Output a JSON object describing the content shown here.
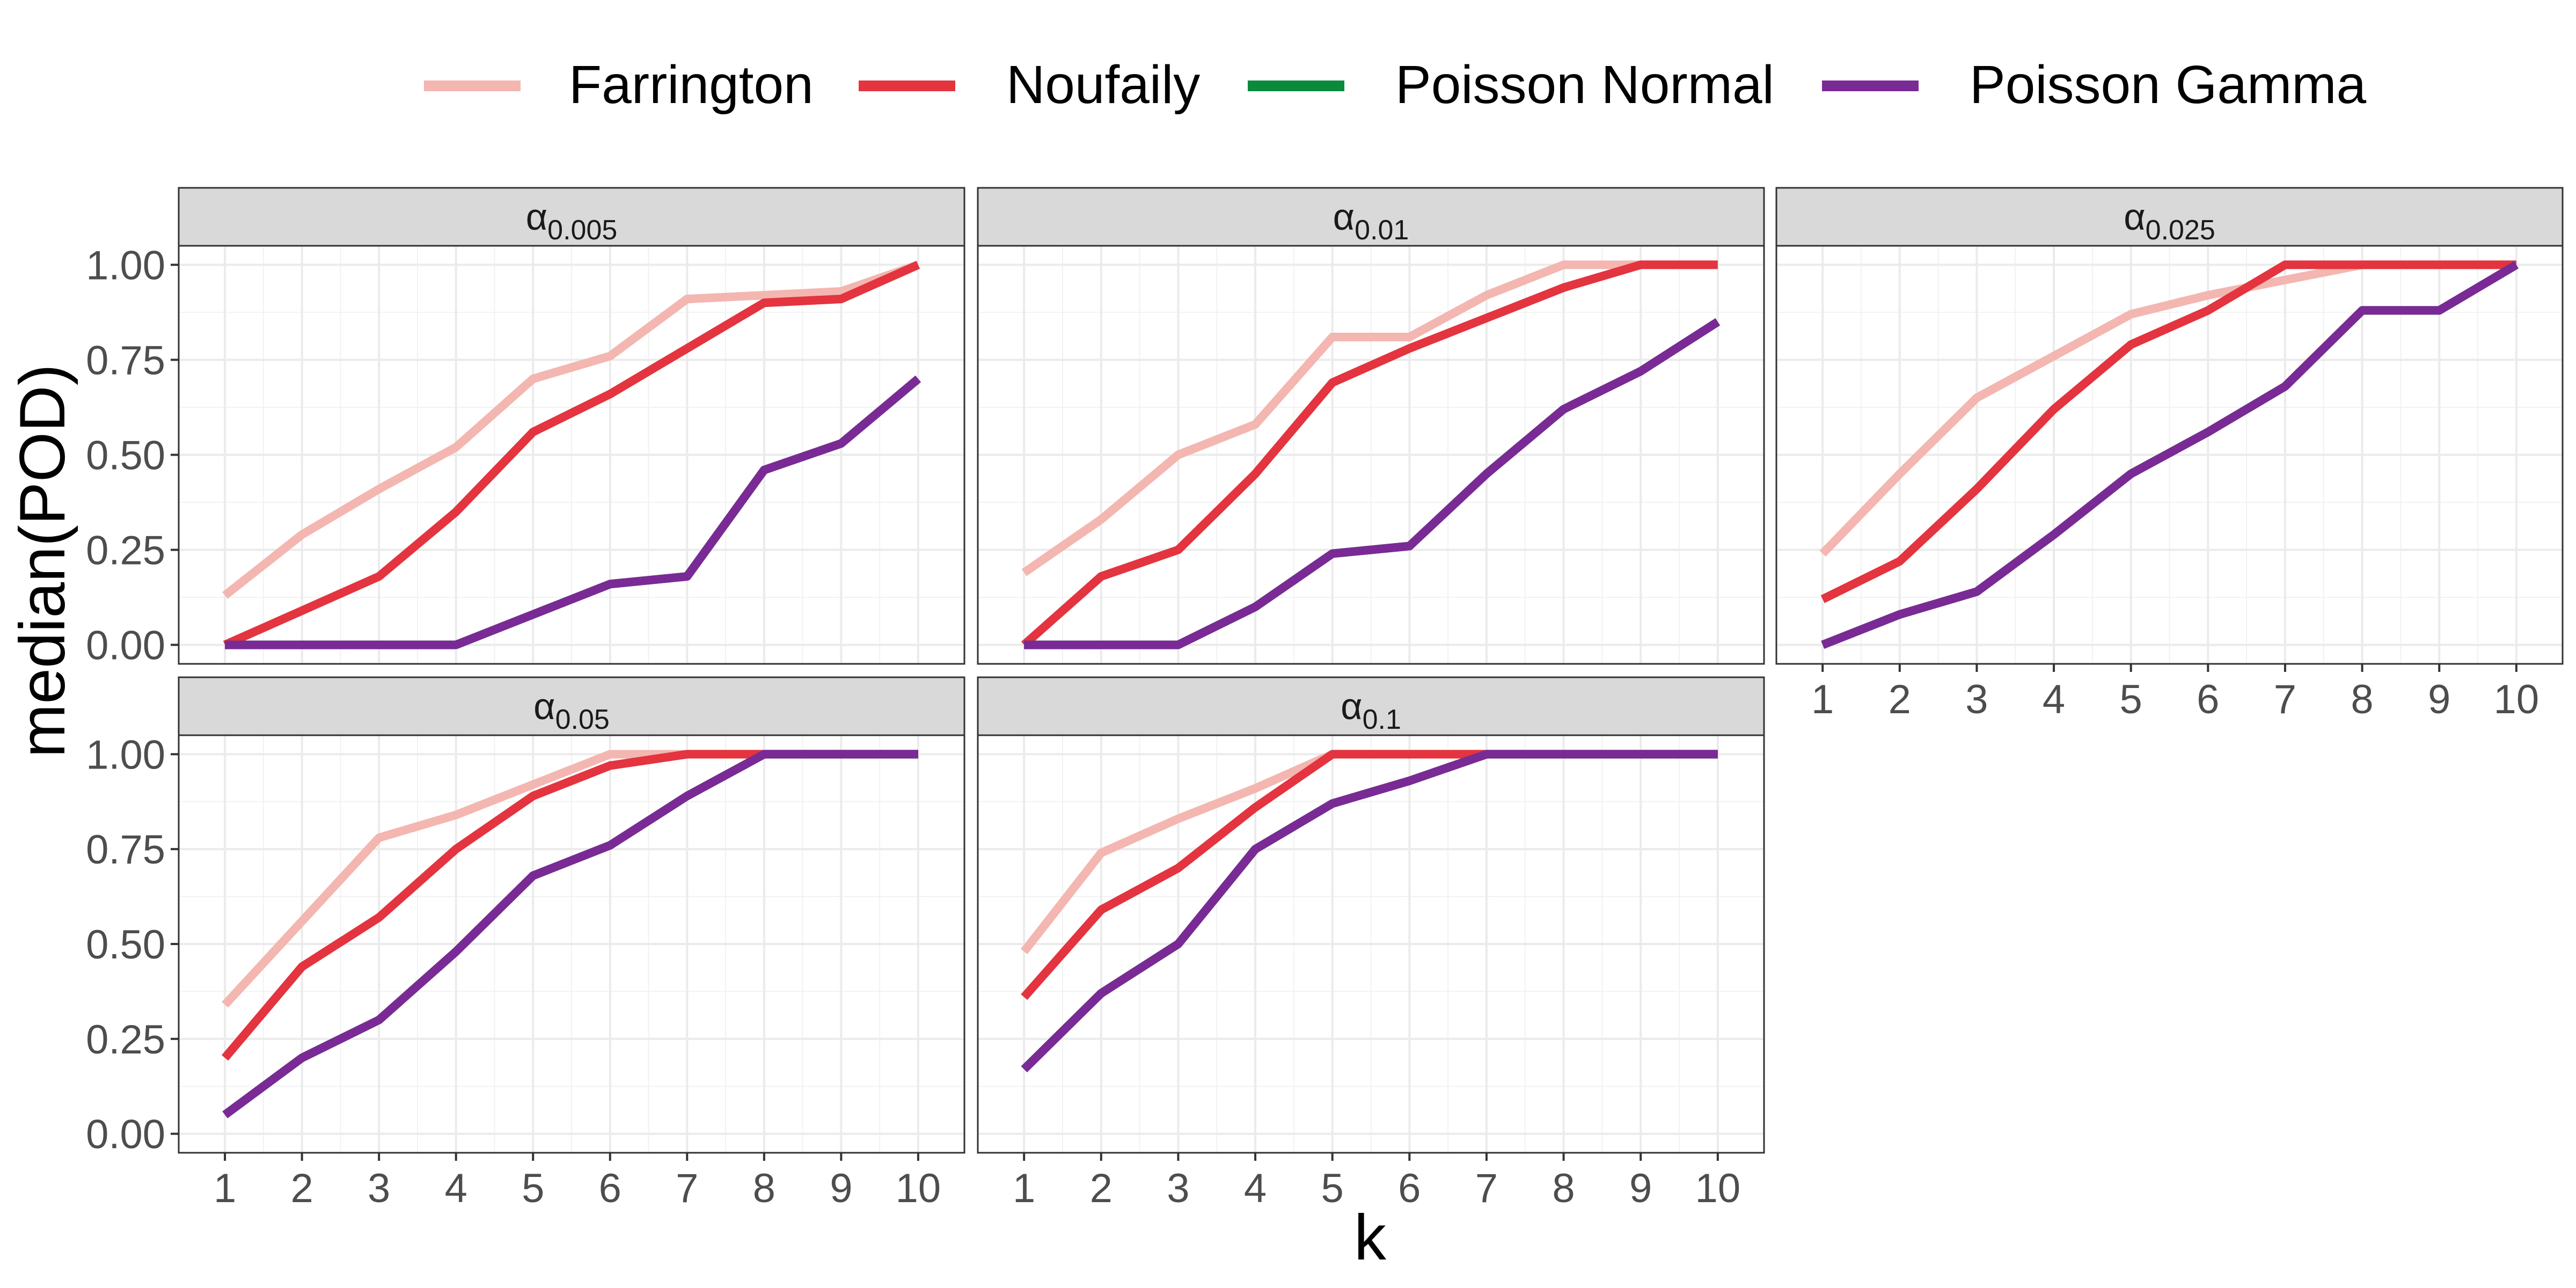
{
  "legend": {
    "entries": [
      {
        "label": "Farrington",
        "color": "#F4B6B0"
      },
      {
        "label": "Noufaily",
        "color": "#E3343F"
      },
      {
        "label": "Poisson Normal",
        "color": "#0A8A3C"
      },
      {
        "label": "Poisson Gamma",
        "color": "#7A2A95"
      }
    ]
  },
  "axes": {
    "xlabel": "k",
    "ylabel": "median(POD)",
    "x_ticks": [
      "1",
      "2",
      "3",
      "4",
      "5",
      "6",
      "7",
      "8",
      "9",
      "10"
    ],
    "y_ticks": [
      "0.00",
      "0.25",
      "0.50",
      "0.75",
      "1.00"
    ]
  },
  "chart_data": [
    {
      "type": "line",
      "panel_title_symbol": "α",
      "panel_title_subscript": "0.005",
      "x": [
        1,
        2,
        3,
        4,
        5,
        6,
        7,
        8,
        9,
        10
      ],
      "ylim": [
        -0.05,
        1.05
      ],
      "series": [
        {
          "name": "Farrington",
          "values": [
            0.13,
            0.29,
            0.41,
            0.52,
            0.7,
            0.76,
            0.91,
            0.92,
            0.93,
            1.0
          ]
        },
        {
          "name": "Noufaily",
          "values": [
            0.0,
            0.09,
            0.18,
            0.35,
            0.56,
            0.66,
            0.78,
            0.9,
            0.91,
            1.0
          ]
        },
        {
          "name": "Poisson Normal",
          "values": [
            0.0,
            0.0,
            0.0,
            0.0,
            0.08,
            0.16,
            0.18,
            0.46,
            0.53,
            0.7
          ]
        },
        {
          "name": "Poisson Gamma",
          "values": [
            0.0,
            0.0,
            0.0,
            0.0,
            0.08,
            0.16,
            0.18,
            0.46,
            0.53,
            0.7
          ]
        }
      ]
    },
    {
      "type": "line",
      "panel_title_symbol": "α",
      "panel_title_subscript": "0.01",
      "x": [
        1,
        2,
        3,
        4,
        5,
        6,
        7,
        8,
        9,
        10
      ],
      "ylim": [
        -0.05,
        1.05
      ],
      "series": [
        {
          "name": "Farrington",
          "values": [
            0.19,
            0.33,
            0.5,
            0.58,
            0.81,
            0.81,
            0.92,
            1.0,
            1.0,
            1.0
          ]
        },
        {
          "name": "Noufaily",
          "values": [
            0.0,
            0.18,
            0.25,
            0.45,
            0.69,
            0.78,
            0.86,
            0.94,
            1.0,
            1.0
          ]
        },
        {
          "name": "Poisson Normal",
          "values": [
            0.0,
            0.0,
            0.0,
            0.1,
            0.24,
            0.26,
            0.45,
            0.62,
            0.72,
            0.85
          ]
        },
        {
          "name": "Poisson Gamma",
          "values": [
            0.0,
            0.0,
            0.0,
            0.1,
            0.24,
            0.26,
            0.45,
            0.62,
            0.72,
            0.85
          ]
        }
      ]
    },
    {
      "type": "line",
      "panel_title_symbol": "α",
      "panel_title_subscript": "0.025",
      "x": [
        1,
        2,
        3,
        4,
        5,
        6,
        7,
        8,
        9,
        10
      ],
      "ylim": [
        -0.05,
        1.05
      ],
      "series": [
        {
          "name": "Farrington",
          "values": [
            0.24,
            0.45,
            0.65,
            0.76,
            0.87,
            0.92,
            0.96,
            1.0,
            1.0,
            1.0
          ]
        },
        {
          "name": "Noufaily",
          "values": [
            0.12,
            0.22,
            0.41,
            0.62,
            0.79,
            0.88,
            1.0,
            1.0,
            1.0,
            1.0
          ]
        },
        {
          "name": "Poisson Normal",
          "values": [
            0.0,
            0.08,
            0.14,
            0.29,
            0.45,
            0.56,
            0.68,
            0.88,
            0.88,
            1.0
          ]
        },
        {
          "name": "Poisson Gamma",
          "values": [
            0.0,
            0.08,
            0.14,
            0.29,
            0.45,
            0.56,
            0.68,
            0.88,
            0.88,
            1.0
          ]
        }
      ]
    },
    {
      "type": "line",
      "panel_title_symbol": "α",
      "panel_title_subscript": "0.05",
      "x": [
        1,
        2,
        3,
        4,
        5,
        6,
        7,
        8,
        9,
        10
      ],
      "ylim": [
        -0.05,
        1.05
      ],
      "series": [
        {
          "name": "Farrington",
          "values": [
            0.34,
            0.56,
            0.78,
            0.84,
            0.92,
            1.0,
            1.0,
            1.0,
            1.0,
            1.0
          ]
        },
        {
          "name": "Noufaily",
          "values": [
            0.2,
            0.44,
            0.57,
            0.75,
            0.89,
            0.97,
            1.0,
            1.0,
            1.0,
            1.0
          ]
        },
        {
          "name": "Poisson Normal",
          "values": [
            0.05,
            0.2,
            0.3,
            0.48,
            0.68,
            0.76,
            0.89,
            1.0,
            1.0,
            1.0
          ]
        },
        {
          "name": "Poisson Gamma",
          "values": [
            0.05,
            0.2,
            0.3,
            0.48,
            0.68,
            0.76,
            0.89,
            1.0,
            1.0,
            1.0
          ]
        }
      ]
    },
    {
      "type": "line",
      "panel_title_symbol": "α",
      "panel_title_subscript": "0.1",
      "x": [
        1,
        2,
        3,
        4,
        5,
        6,
        7,
        8,
        9,
        10
      ],
      "ylim": [
        -0.05,
        1.05
      ],
      "series": [
        {
          "name": "Farrington",
          "values": [
            0.48,
            0.74,
            0.83,
            0.91,
            1.0,
            1.0,
            1.0,
            1.0,
            1.0,
            1.0
          ]
        },
        {
          "name": "Noufaily",
          "values": [
            0.36,
            0.59,
            0.7,
            0.86,
            1.0,
            1.0,
            1.0,
            1.0,
            1.0,
            1.0
          ]
        },
        {
          "name": "Poisson Normal",
          "values": [
            0.17,
            0.37,
            0.5,
            0.75,
            0.87,
            0.93,
            1.0,
            1.0,
            1.0,
            1.0
          ]
        },
        {
          "name": "Poisson Gamma",
          "values": [
            0.17,
            0.37,
            0.5,
            0.75,
            0.87,
            0.93,
            1.0,
            1.0,
            1.0,
            1.0
          ]
        }
      ]
    }
  ]
}
